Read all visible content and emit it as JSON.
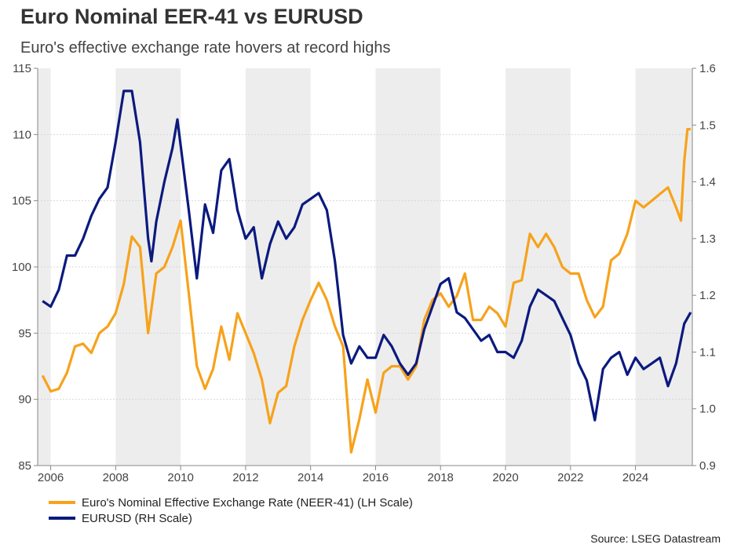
{
  "title": "Euro Nominal EER-41 vs EURUSD",
  "subtitle": "Euro's effective exchange rate hovers at record highs",
  "source": "Source: LSEG Datastream",
  "chart_data": {
    "type": "line",
    "title": "Euro Nominal EER-41 vs EURUSD",
    "subtitle": "Euro's effective exchange rate hovers at record highs",
    "xlim": [
      2005.6,
      2025.75
    ],
    "x_ticks": [
      "2006",
      "2008",
      "2010",
      "2012",
      "2014",
      "2016",
      "2018",
      "2020",
      "2022",
      "2024"
    ],
    "y_left": {
      "lim": [
        85,
        115
      ],
      "ticks": [
        "85",
        "90",
        "95",
        "100",
        "105",
        "110",
        "115"
      ]
    },
    "y_right": {
      "lim": [
        0.9,
        1.6
      ],
      "ticks": [
        "0.9",
        "1.0",
        "1.1",
        "1.2",
        "1.3",
        "1.4",
        "1.5",
        "1.6"
      ]
    },
    "grid": true,
    "shaded_periods": [
      [
        2005.6,
        2006
      ],
      [
        2008,
        2010
      ],
      [
        2012,
        2014
      ],
      [
        2016,
        2018
      ],
      [
        2020,
        2022
      ],
      [
        2024,
        2025.75
      ]
    ],
    "legend_position": "bottom-left",
    "series": [
      {
        "name": "Euro's Nominal Effective Exchange Rate (NEER-41) (LH Scale)",
        "axis": "left",
        "color": "#F7A21B",
        "x": [
          2005.75,
          2006,
          2006.25,
          2006.5,
          2006.75,
          2007,
          2007.25,
          2007.5,
          2007.75,
          2008,
          2008.25,
          2008.5,
          2008.75,
          2009,
          2009.25,
          2009.5,
          2009.75,
          2010,
          2010.25,
          2010.5,
          2010.75,
          2011,
          2011.25,
          2011.5,
          2011.75,
          2012,
          2012.25,
          2012.5,
          2012.75,
          2013,
          2013.25,
          2013.5,
          2013.75,
          2014,
          2014.25,
          2014.5,
          2014.75,
          2015,
          2015.25,
          2015.5,
          2015.75,
          2016,
          2016.25,
          2016.5,
          2016.75,
          2017,
          2017.25,
          2017.5,
          2017.75,
          2018,
          2018.25,
          2018.5,
          2018.75,
          2019,
          2019.25,
          2019.5,
          2019.75,
          2020,
          2020.25,
          2020.5,
          2020.75,
          2021,
          2021.25,
          2021.5,
          2021.75,
          2022,
          2022.25,
          2022.5,
          2022.75,
          2023,
          2023.25,
          2023.5,
          2023.75,
          2024,
          2024.25,
          2024.5,
          2024.75,
          2025,
          2025.25,
          2025.4,
          2025.5,
          2025.6,
          2025.7
        ],
        "values": [
          91.8,
          90.6,
          90.8,
          92,
          94,
          94.2,
          93.5,
          95,
          95.5,
          96.5,
          98.7,
          102.3,
          101.5,
          95,
          99.5,
          100,
          101.5,
          103.5,
          98,
          92.5,
          90.8,
          92.3,
          95.5,
          93,
          96.5,
          95,
          93.5,
          91.5,
          88.2,
          90.5,
          91,
          94,
          96,
          97.5,
          98.8,
          97.5,
          95.5,
          94,
          86,
          88.5,
          91.5,
          89,
          92,
          92.5,
          92.5,
          91.5,
          92.5,
          96,
          97.5,
          98,
          97,
          97.8,
          99.5,
          96,
          96,
          97,
          96.5,
          95.5,
          98.8,
          99,
          102.5,
          101.5,
          102.5,
          101.5,
          100,
          99.5,
          99.5,
          97.5,
          96.2,
          97,
          100.5,
          101,
          102.5,
          105,
          104.5,
          105,
          105.5,
          106,
          104.5,
          103.5,
          108,
          110.4,
          110.4
        ]
      },
      {
        "name": "EURUSD (RH Scale)",
        "axis": "right",
        "color": "#0B1A7E",
        "x": [
          2005.75,
          2006,
          2006.25,
          2006.5,
          2006.75,
          2007,
          2007.25,
          2007.5,
          2007.75,
          2008,
          2008.25,
          2008.5,
          2008.75,
          2009,
          2009.1,
          2009.25,
          2009.5,
          2009.75,
          2009.9,
          2010.25,
          2010.5,
          2010.75,
          2011,
          2011.25,
          2011.5,
          2011.75,
          2012,
          2012.25,
          2012.5,
          2012.75,
          2013,
          2013.25,
          2013.5,
          2013.75,
          2014,
          2014.25,
          2014.5,
          2014.75,
          2015,
          2015.25,
          2015.5,
          2015.75,
          2016,
          2016.25,
          2016.5,
          2016.75,
          2017,
          2017.25,
          2017.5,
          2017.75,
          2018,
          2018.25,
          2018.5,
          2018.75,
          2019,
          2019.25,
          2019.5,
          2019.75,
          2020,
          2020.25,
          2020.5,
          2020.75,
          2021,
          2021.25,
          2021.5,
          2021.75,
          2022,
          2022.25,
          2022.5,
          2022.75,
          2023,
          2023.25,
          2023.5,
          2023.75,
          2024,
          2024.25,
          2024.5,
          2024.75,
          2025,
          2025.25,
          2025.5,
          2025.7
        ],
        "values": [
          1.19,
          1.18,
          1.21,
          1.27,
          1.27,
          1.3,
          1.34,
          1.37,
          1.39,
          1.47,
          1.56,
          1.56,
          1.47,
          1.3,
          1.26,
          1.33,
          1.4,
          1.46,
          1.51,
          1.35,
          1.23,
          1.36,
          1.31,
          1.42,
          1.44,
          1.35,
          1.3,
          1.32,
          1.23,
          1.29,
          1.33,
          1.3,
          1.32,
          1.36,
          1.37,
          1.38,
          1.35,
          1.26,
          1.13,
          1.08,
          1.11,
          1.09,
          1.09,
          1.13,
          1.11,
          1.08,
          1.06,
          1.08,
          1.14,
          1.18,
          1.22,
          1.23,
          1.17,
          1.16,
          1.14,
          1.12,
          1.13,
          1.1,
          1.1,
          1.09,
          1.12,
          1.18,
          1.21,
          1.2,
          1.19,
          1.16,
          1.13,
          1.08,
          1.05,
          0.98,
          1.07,
          1.09,
          1.1,
          1.06,
          1.09,
          1.07,
          1.08,
          1.09,
          1.04,
          1.08,
          1.15,
          1.17
        ]
      }
    ]
  }
}
